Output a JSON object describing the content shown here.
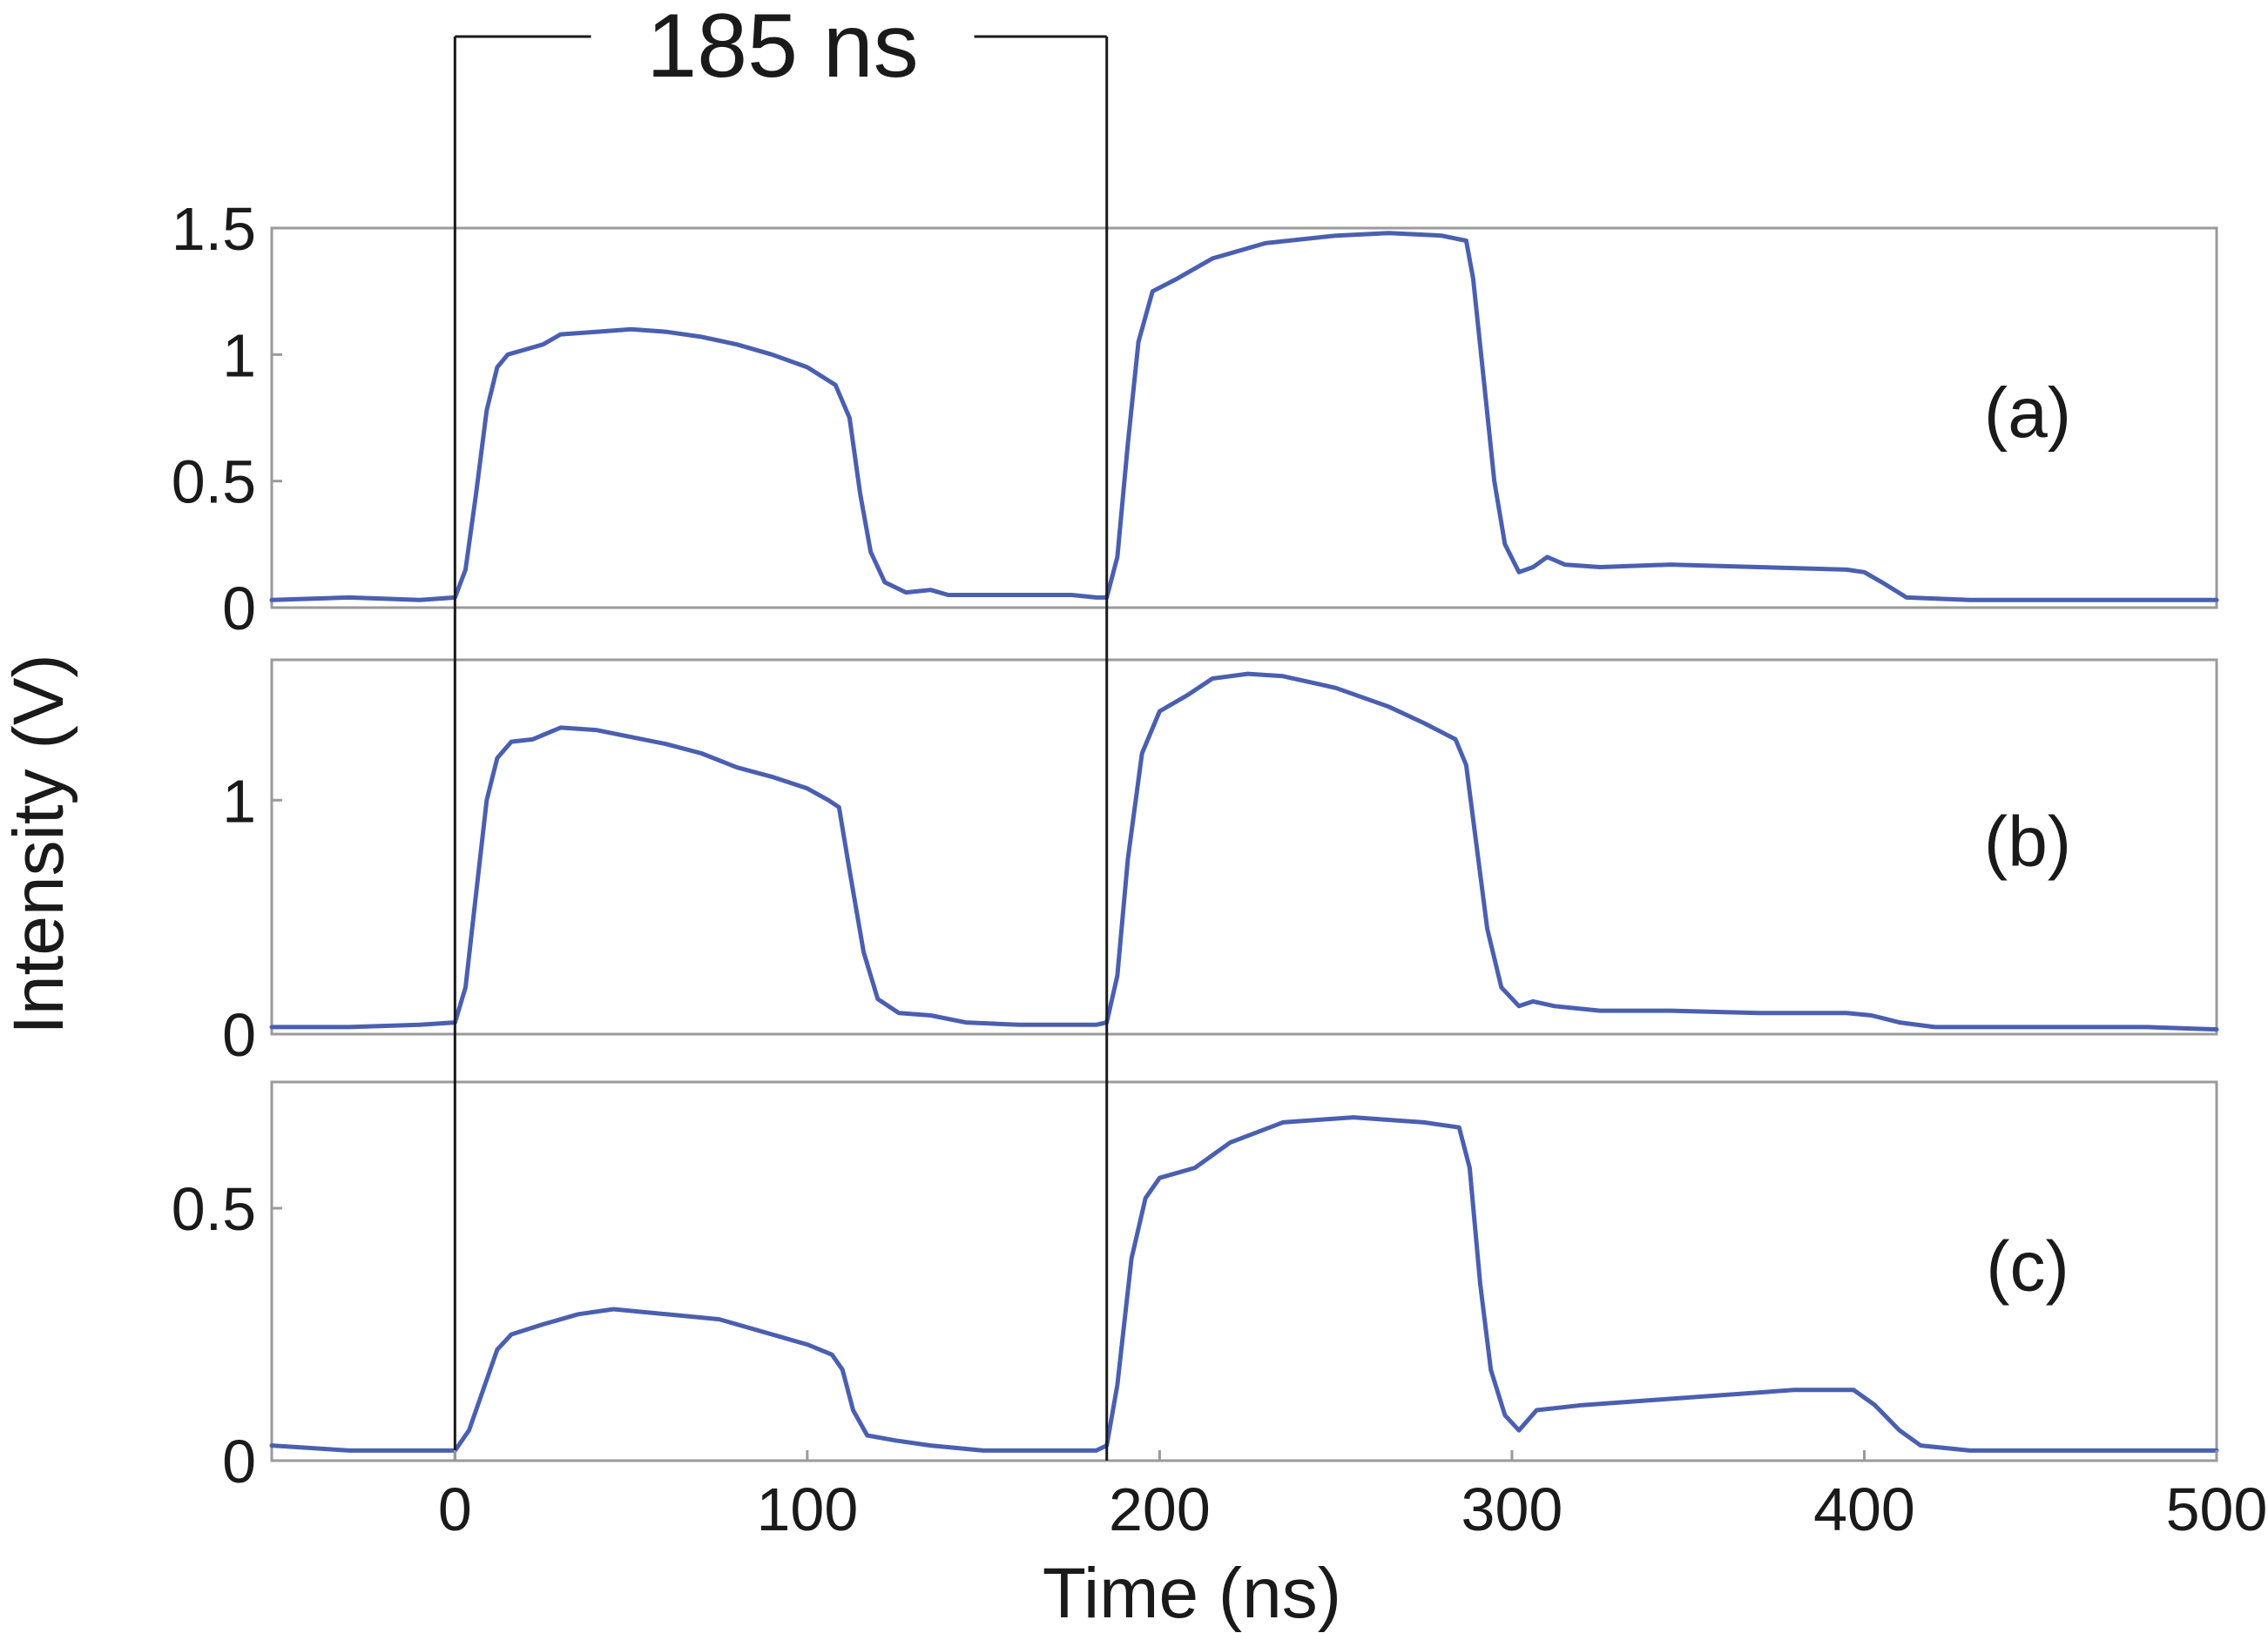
{
  "chart_data": {
    "type": "line",
    "xlabel": "Time (ns)",
    "ylabel": "Intensity (V)",
    "xlim": [
      -52,
      500
    ],
    "xticks": [
      "0",
      "100",
      "200",
      "300",
      "400",
      "500"
    ],
    "xtick_values": [
      0,
      100,
      200,
      300,
      400,
      500
    ],
    "grid": false,
    "line_color": "#4a5fb0",
    "annotation": {
      "text": "185 ns",
      "start": 0,
      "end": 185
    },
    "panels": [
      {
        "label": "(a)",
        "ylim": [
          0,
          1.5
        ],
        "yticks": [
          "0",
          "0.5",
          "1",
          "1.5"
        ],
        "ytick_values": [
          0,
          0.5,
          1,
          1.5
        ],
        "points": [
          [
            -52,
            0.03
          ],
          [
            -30,
            0.04
          ],
          [
            -10,
            0.03
          ],
          [
            0,
            0.04
          ],
          [
            3,
            0.15
          ],
          [
            6,
            0.45
          ],
          [
            9,
            0.78
          ],
          [
            12,
            0.95
          ],
          [
            15,
            1.0
          ],
          [
            20,
            1.02
          ],
          [
            25,
            1.04
          ],
          [
            30,
            1.08
          ],
          [
            40,
            1.09
          ],
          [
            50,
            1.1
          ],
          [
            60,
            1.09
          ],
          [
            70,
            1.07
          ],
          [
            80,
            1.04
          ],
          [
            90,
            1.0
          ],
          [
            100,
            0.95
          ],
          [
            108,
            0.88
          ],
          [
            112,
            0.75
          ],
          [
            115,
            0.45
          ],
          [
            118,
            0.22
          ],
          [
            122,
            0.1
          ],
          [
            128,
            0.06
          ],
          [
            135,
            0.07
          ],
          [
            140,
            0.05
          ],
          [
            160,
            0.05
          ],
          [
            175,
            0.05
          ],
          [
            182,
            0.04
          ],
          [
            185,
            0.04
          ],
          [
            188,
            0.2
          ],
          [
            191,
            0.65
          ],
          [
            194,
            1.05
          ],
          [
            198,
            1.25
          ],
          [
            205,
            1.3
          ],
          [
            215,
            1.38
          ],
          [
            230,
            1.44
          ],
          [
            250,
            1.47
          ],
          [
            265,
            1.48
          ],
          [
            280,
            1.47
          ],
          [
            287,
            1.45
          ],
          [
            289,
            1.3
          ],
          [
            292,
            0.9
          ],
          [
            295,
            0.5
          ],
          [
            298,
            0.25
          ],
          [
            302,
            0.14
          ],
          [
            306,
            0.16
          ],
          [
            310,
            0.2
          ],
          [
            315,
            0.17
          ],
          [
            325,
            0.16
          ],
          [
            345,
            0.17
          ],
          [
            370,
            0.16
          ],
          [
            395,
            0.15
          ],
          [
            400,
            0.14
          ],
          [
            405,
            0.1
          ],
          [
            412,
            0.04
          ],
          [
            430,
            0.03
          ],
          [
            460,
            0.03
          ],
          [
            490,
            0.03
          ],
          [
            500,
            0.03
          ]
        ]
      },
      {
        "label": "(b)",
        "ylim": [
          0,
          1.6
        ],
        "yticks": [
          "0",
          "1"
        ],
        "ytick_values": [
          0,
          1
        ],
        "points": [
          [
            -52,
            0.03
          ],
          [
            -30,
            0.03
          ],
          [
            -10,
            0.04
          ],
          [
            0,
            0.05
          ],
          [
            3,
            0.2
          ],
          [
            6,
            0.6
          ],
          [
            9,
            1.0
          ],
          [
            12,
            1.18
          ],
          [
            16,
            1.25
          ],
          [
            22,
            1.26
          ],
          [
            30,
            1.31
          ],
          [
            40,
            1.3
          ],
          [
            50,
            1.27
          ],
          [
            60,
            1.24
          ],
          [
            70,
            1.2
          ],
          [
            80,
            1.14
          ],
          [
            90,
            1.1
          ],
          [
            100,
            1.05
          ],
          [
            106,
            1.0
          ],
          [
            109,
            0.97
          ],
          [
            112,
            0.7
          ],
          [
            116,
            0.35
          ],
          [
            120,
            0.15
          ],
          [
            126,
            0.09
          ],
          [
            135,
            0.08
          ],
          [
            145,
            0.05
          ],
          [
            160,
            0.04
          ],
          [
            175,
            0.04
          ],
          [
            182,
            0.04
          ],
          [
            185,
            0.05
          ],
          [
            188,
            0.25
          ],
          [
            191,
            0.75
          ],
          [
            195,
            1.2
          ],
          [
            200,
            1.38
          ],
          [
            208,
            1.45
          ],
          [
            215,
            1.52
          ],
          [
            225,
            1.54
          ],
          [
            235,
            1.53
          ],
          [
            250,
            1.48
          ],
          [
            265,
            1.4
          ],
          [
            275,
            1.33
          ],
          [
            284,
            1.26
          ],
          [
            287,
            1.15
          ],
          [
            290,
            0.8
          ],
          [
            293,
            0.45
          ],
          [
            297,
            0.2
          ],
          [
            302,
            0.12
          ],
          [
            306,
            0.14
          ],
          [
            312,
            0.12
          ],
          [
            325,
            0.1
          ],
          [
            345,
            0.1
          ],
          [
            370,
            0.09
          ],
          [
            395,
            0.09
          ],
          [
            402,
            0.08
          ],
          [
            410,
            0.05
          ],
          [
            420,
            0.03
          ],
          [
            450,
            0.03
          ],
          [
            480,
            0.03
          ],
          [
            500,
            0.02
          ]
        ]
      },
      {
        "label": "(c)",
        "ylim": [
          0,
          0.75
        ],
        "yticks": [
          "0",
          "0.5"
        ],
        "ytick_values": [
          0,
          0.5
        ],
        "points": [
          [
            -52,
            0.03
          ],
          [
            -30,
            0.02
          ],
          [
            -10,
            0.02
          ],
          [
            0,
            0.02
          ],
          [
            4,
            0.06
          ],
          [
            8,
            0.14
          ],
          [
            12,
            0.22
          ],
          [
            16,
            0.25
          ],
          [
            25,
            0.27
          ],
          [
            35,
            0.29
          ],
          [
            45,
            0.3
          ],
          [
            60,
            0.29
          ],
          [
            75,
            0.28
          ],
          [
            90,
            0.25
          ],
          [
            100,
            0.23
          ],
          [
            107,
            0.21
          ],
          [
            110,
            0.18
          ],
          [
            113,
            0.1
          ],
          [
            117,
            0.05
          ],
          [
            125,
            0.04
          ],
          [
            135,
            0.03
          ],
          [
            150,
            0.02
          ],
          [
            170,
            0.02
          ],
          [
            182,
            0.02
          ],
          [
            185,
            0.03
          ],
          [
            188,
            0.15
          ],
          [
            192,
            0.4
          ],
          [
            196,
            0.52
          ],
          [
            200,
            0.56
          ],
          [
            210,
            0.58
          ],
          [
            220,
            0.63
          ],
          [
            235,
            0.67
          ],
          [
            255,
            0.68
          ],
          [
            275,
            0.67
          ],
          [
            285,
            0.66
          ],
          [
            288,
            0.58
          ],
          [
            291,
            0.35
          ],
          [
            294,
            0.18
          ],
          [
            298,
            0.09
          ],
          [
            302,
            0.06
          ],
          [
            307,
            0.1
          ],
          [
            320,
            0.11
          ],
          [
            340,
            0.12
          ],
          [
            360,
            0.13
          ],
          [
            380,
            0.14
          ],
          [
            397,
            0.14
          ],
          [
            403,
            0.11
          ],
          [
            410,
            0.06
          ],
          [
            416,
            0.03
          ],
          [
            430,
            0.02
          ],
          [
            460,
            0.02
          ],
          [
            490,
            0.02
          ],
          [
            500,
            0.02
          ]
        ]
      }
    ]
  }
}
